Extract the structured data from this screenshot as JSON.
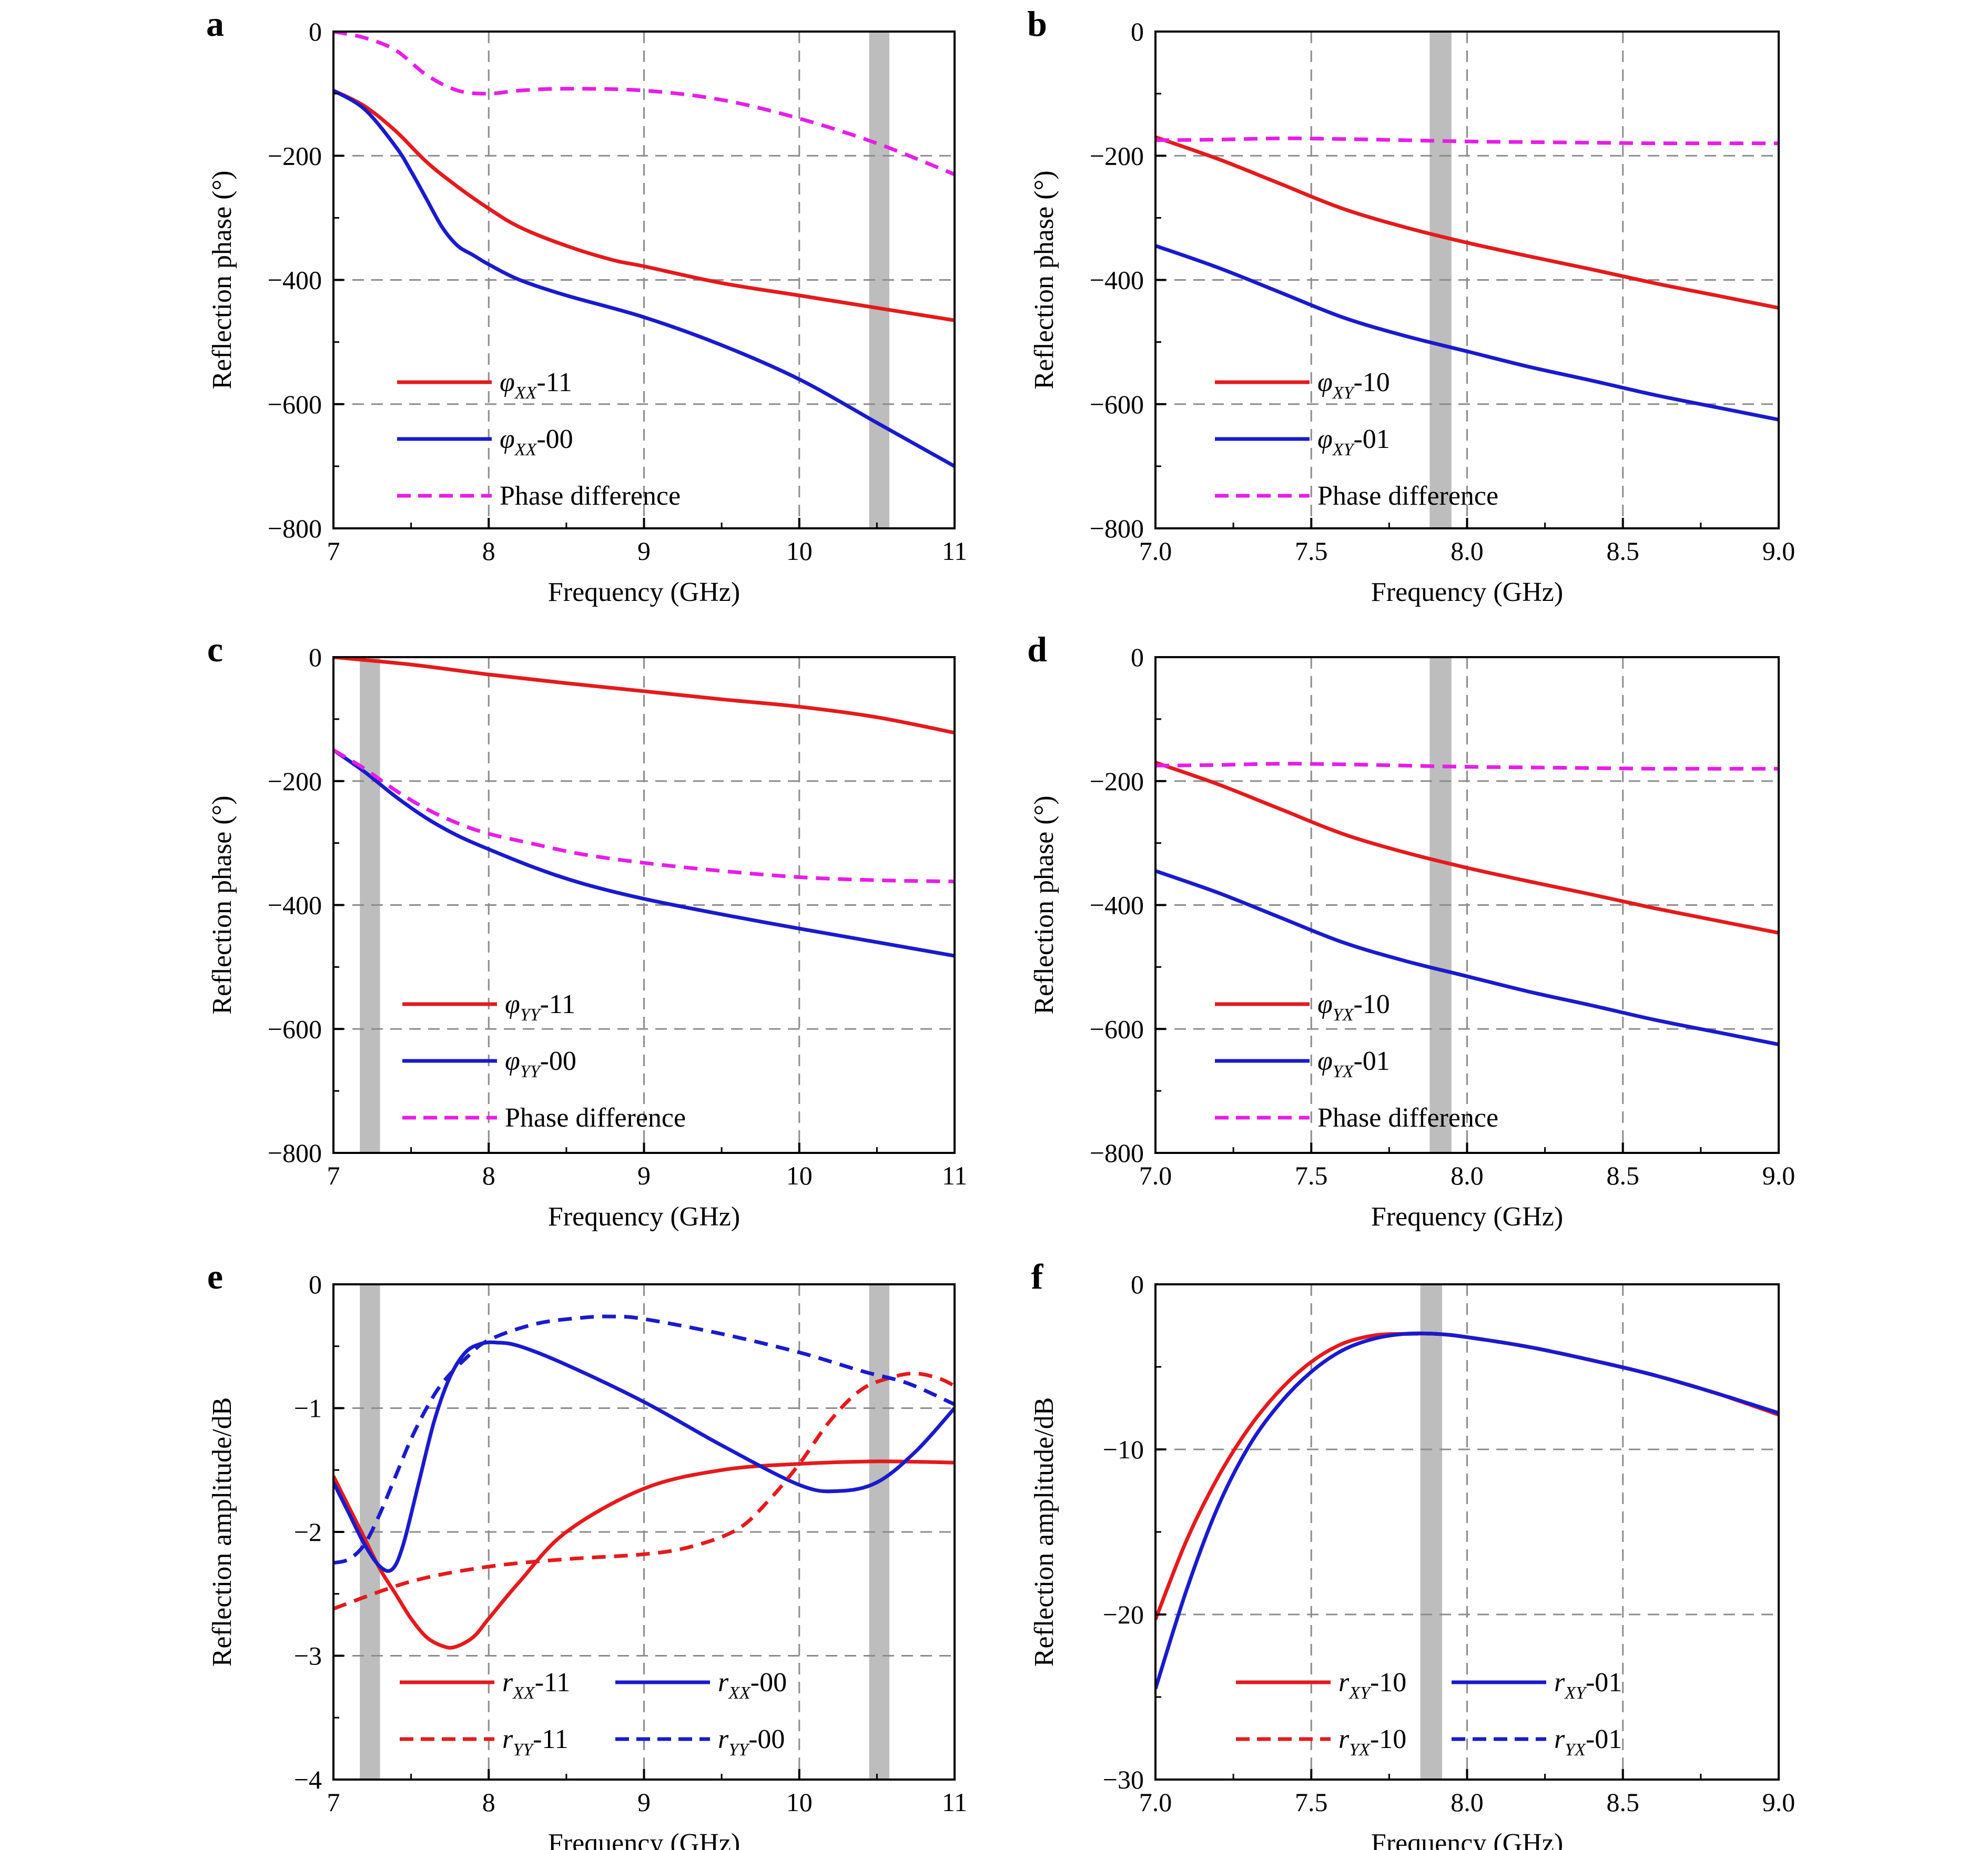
{
  "chart_data": [
    {
      "panel": "a",
      "type": "line",
      "xlabel": "Frequency (GHz)",
      "ylabel": "Reflection phase (°)",
      "xlim": [
        7,
        11
      ],
      "ylim": [
        -800,
        0
      ],
      "xticks": [
        7,
        8,
        9,
        10,
        11
      ],
      "xtick_labels": [
        "7",
        "8",
        "9",
        "10",
        "11"
      ],
      "yticks": [
        0,
        -200,
        -400,
        -600,
        -800
      ],
      "ytick_labels": [
        "0",
        "−200",
        "−400",
        "−600",
        "−800"
      ],
      "grid": true,
      "legend_position": "bottom-left",
      "highlight_bands": [
        [
          10.45,
          10.58
        ]
      ],
      "series": [
        {
          "name": "φXX-11",
          "sym": "φ",
          "sub": "XX",
          "suffix": "-11",
          "color": "#e41a1c",
          "dash": "solid",
          "x": [
            7,
            7.2,
            7.4,
            7.6,
            7.8,
            8,
            8.2,
            8.5,
            8.8,
            9,
            9.5,
            10,
            10.5,
            11
          ],
          "y": [
            -95,
            -120,
            -160,
            -210,
            -250,
            -285,
            -315,
            -345,
            -368,
            -378,
            -405,
            -425,
            -445,
            -465
          ]
        },
        {
          "name": "φXX-00",
          "sym": "φ",
          "sub": "XX",
          "suffix": "-00",
          "color": "#1a1acd",
          "dash": "solid",
          "x": [
            7,
            7.2,
            7.4,
            7.5,
            7.6,
            7.7,
            7.8,
            7.9,
            8,
            8.2,
            8.5,
            9,
            9.5,
            10,
            10.5,
            11
          ],
          "y": [
            -95,
            -125,
            -185,
            -225,
            -270,
            -315,
            -345,
            -360,
            -375,
            -400,
            -425,
            -460,
            -505,
            -560,
            -630,
            -700
          ]
        },
        {
          "name": "Phase difference",
          "label": "Phase difference",
          "color": "#e61ee6",
          "dash": "dashed",
          "x": [
            7,
            7.2,
            7.4,
            7.6,
            7.8,
            8,
            8.2,
            8.5,
            9,
            9.5,
            10,
            10.5,
            11
          ],
          "y": [
            0,
            -10,
            -30,
            -70,
            -95,
            -100,
            -95,
            -92,
            -95,
            -110,
            -140,
            -180,
            -230
          ]
        }
      ]
    },
    {
      "panel": "b",
      "type": "line",
      "xlabel": "Frequency (GHz)",
      "ylabel": "Reflection phase (°)",
      "xlim": [
        7.0,
        9.0
      ],
      "ylim": [
        -800,
        0
      ],
      "xticks": [
        7.0,
        7.5,
        8.0,
        8.5,
        9.0
      ],
      "xtick_labels": [
        "7.0",
        "7.5",
        "8.0",
        "8.5",
        "9.0"
      ],
      "yticks": [
        0,
        -200,
        -400,
        -600,
        -800
      ],
      "ytick_labels": [
        "0",
        "−200",
        "−400",
        "−600",
        "−800"
      ],
      "grid": true,
      "legend_position": "bottom-left",
      "highlight_bands": [
        [
          7.88,
          7.95
        ]
      ],
      "series": [
        {
          "name": "φXY-10",
          "sym": "φ",
          "sub": "XY",
          "suffix": "-10",
          "color": "#e41a1c",
          "dash": "solid",
          "x": [
            7,
            7.2,
            7.4,
            7.6,
            7.8,
            8,
            8.2,
            8.4,
            8.6,
            8.8,
            9
          ],
          "y": [
            -170,
            -205,
            -245,
            -285,
            -315,
            -340,
            -362,
            -383,
            -405,
            -425,
            -445
          ]
        },
        {
          "name": "φXY-01",
          "sym": "φ",
          "sub": "XY",
          "suffix": "-01",
          "color": "#1a1acd",
          "dash": "solid",
          "x": [
            7,
            7.2,
            7.4,
            7.6,
            7.8,
            8,
            8.2,
            8.4,
            8.6,
            8.8,
            9
          ],
          "y": [
            -345,
            -380,
            -420,
            -460,
            -490,
            -515,
            -540,
            -562,
            -585,
            -605,
            -625
          ]
        },
        {
          "name": "Phase difference",
          "label": "Phase difference",
          "color": "#e61ee6",
          "dash": "dashed",
          "x": [
            7,
            7.2,
            7.4,
            7.6,
            7.8,
            8,
            8.2,
            8.4,
            8.6,
            8.8,
            9
          ],
          "y": [
            -175,
            -174,
            -172,
            -173,
            -175,
            -177,
            -178,
            -179,
            -180,
            -180,
            -180
          ]
        }
      ]
    },
    {
      "panel": "c",
      "type": "line",
      "xlabel": "Frequency (GHz)",
      "ylabel": "Reflection phase (°)",
      "xlim": [
        7,
        11
      ],
      "ylim": [
        -800,
        0
      ],
      "xticks": [
        7,
        8,
        9,
        10,
        11
      ],
      "xtick_labels": [
        "7",
        "8",
        "9",
        "10",
        "11"
      ],
      "yticks": [
        0,
        -200,
        -400,
        -600,
        -800
      ],
      "ytick_labels": [
        "0",
        "−200",
        "−400",
        "−600",
        "−800"
      ],
      "grid": true,
      "legend_position": "bottom-left",
      "highlight_bands": [
        [
          7.17,
          7.3
        ]
      ],
      "series": [
        {
          "name": "φYY-11",
          "sym": "φ",
          "sub": "YY",
          "suffix": "-11",
          "color": "#e41a1c",
          "dash": "solid",
          "x": [
            7,
            7.5,
            8,
            8.5,
            9,
            9.5,
            10,
            10.5,
            11
          ],
          "y": [
            0,
            -12,
            -28,
            -42,
            -55,
            -68,
            -80,
            -97,
            -122
          ]
        },
        {
          "name": "φYY-00",
          "sym": "φ",
          "sub": "YY",
          "suffix": "-00",
          "color": "#1a1acd",
          "dash": "solid",
          "x": [
            7,
            7.2,
            7.4,
            7.6,
            7.8,
            8,
            8.3,
            8.6,
            9,
            9.5,
            10,
            10.5,
            11
          ],
          "y": [
            -150,
            -185,
            -225,
            -260,
            -288,
            -310,
            -340,
            -365,
            -390,
            -415,
            -438,
            -460,
            -482
          ]
        },
        {
          "name": "Phase difference",
          "label": "Phase difference",
          "color": "#e61ee6",
          "dash": "dashed",
          "x": [
            7,
            7.2,
            7.4,
            7.6,
            7.8,
            8,
            8.3,
            8.6,
            9,
            9.5,
            10,
            10.5,
            11
          ],
          "y": [
            -150,
            -180,
            -215,
            -245,
            -268,
            -285,
            -302,
            -318,
            -332,
            -345,
            -355,
            -360,
            -362
          ]
        }
      ]
    },
    {
      "panel": "d",
      "type": "line",
      "xlabel": "Frequency (GHz)",
      "ylabel": "Reflection phase (°)",
      "xlim": [
        7.0,
        9.0
      ],
      "ylim": [
        -800,
        0
      ],
      "xticks": [
        7.0,
        7.5,
        8.0,
        8.5,
        9.0
      ],
      "xtick_labels": [
        "7.0",
        "7.5",
        "8.0",
        "8.5",
        "9.0"
      ],
      "yticks": [
        0,
        -200,
        -400,
        -600,
        -800
      ],
      "ytick_labels": [
        "0",
        "−200",
        "−400",
        "−600",
        "−800"
      ],
      "grid": true,
      "legend_position": "bottom-left",
      "highlight_bands": [
        [
          7.88,
          7.95
        ]
      ],
      "series": [
        {
          "name": "φYX-10",
          "sym": "φ",
          "sub": "YX",
          "suffix": "-10",
          "color": "#e41a1c",
          "dash": "solid",
          "x": [
            7,
            7.2,
            7.4,
            7.6,
            7.8,
            8,
            8.2,
            8.4,
            8.6,
            8.8,
            9
          ],
          "y": [
            -170,
            -205,
            -245,
            -285,
            -315,
            -340,
            -362,
            -383,
            -405,
            -425,
            -445
          ]
        },
        {
          "name": "φYX-01",
          "sym": "φ",
          "sub": "YX",
          "suffix": "-01",
          "color": "#1a1acd",
          "dash": "solid",
          "x": [
            7,
            7.2,
            7.4,
            7.6,
            7.8,
            8,
            8.2,
            8.4,
            8.6,
            8.8,
            9
          ],
          "y": [
            -345,
            -380,
            -420,
            -460,
            -490,
            -515,
            -540,
            -562,
            -585,
            -605,
            -625
          ]
        },
        {
          "name": "Phase difference",
          "label": "Phase difference",
          "color": "#e61ee6",
          "dash": "dashed",
          "x": [
            7,
            7.2,
            7.4,
            7.6,
            7.8,
            8,
            8.2,
            8.4,
            8.6,
            8.8,
            9
          ],
          "y": [
            -175,
            -174,
            -172,
            -173,
            -175,
            -177,
            -178,
            -179,
            -180,
            -180,
            -180
          ]
        }
      ]
    },
    {
      "panel": "e",
      "type": "line",
      "xlabel": "Frequency (GHz)",
      "ylabel": "Reflection amplitude/dB",
      "xlim": [
        7,
        11
      ],
      "ylim": [
        -4,
        0
      ],
      "xticks": [
        7,
        8,
        9,
        10,
        11
      ],
      "xtick_labels": [
        "7",
        "8",
        "9",
        "10",
        "11"
      ],
      "yticks": [
        0,
        -1,
        -2,
        -3,
        -4
      ],
      "ytick_labels": [
        "0",
        "−1",
        "−2",
        "−3",
        "−4"
      ],
      "grid": true,
      "legend_position": "bottom",
      "legend_columns": 2,
      "highlight_bands": [
        [
          7.17,
          7.3
        ],
        [
          10.45,
          10.58
        ]
      ],
      "series": [
        {
          "name": "rXX-11",
          "sym": "r",
          "sub": "XX",
          "suffix": "-11",
          "color": "#e41a1c",
          "dash": "solid",
          "x": [
            7,
            7.1,
            7.2,
            7.3,
            7.4,
            7.5,
            7.6,
            7.7,
            7.78,
            7.9,
            8,
            8.2,
            8.5,
            9,
            9.5,
            10,
            10.5,
            11
          ],
          "y": [
            -1.55,
            -1.8,
            -2.05,
            -2.3,
            -2.5,
            -2.7,
            -2.85,
            -2.92,
            -2.93,
            -2.85,
            -2.7,
            -2.4,
            -2.0,
            -1.65,
            -1.5,
            -1.45,
            -1.43,
            -1.44
          ]
        },
        {
          "name": "rXX-00",
          "sym": "r",
          "sub": "XX",
          "suffix": "-00",
          "color": "#1a1acd",
          "dash": "solid",
          "x": [
            7,
            7.1,
            7.2,
            7.3,
            7.38,
            7.45,
            7.55,
            7.65,
            7.75,
            7.85,
            7.95,
            8.05,
            8.2,
            8.5,
            9,
            9.5,
            10,
            10.25,
            10.5,
            10.75,
            11
          ],
          "y": [
            -1.6,
            -1.85,
            -2.1,
            -2.28,
            -2.3,
            -2.1,
            -1.6,
            -1.1,
            -0.75,
            -0.55,
            -0.48,
            -0.47,
            -0.5,
            -0.65,
            -0.95,
            -1.3,
            -1.62,
            -1.67,
            -1.6,
            -1.35,
            -1.0
          ]
        },
        {
          "name": "rYY-11",
          "sym": "r",
          "sub": "YY",
          "suffix": "-11",
          "color": "#e41a1c",
          "dash": "dashed",
          "x": [
            7,
            7.5,
            8,
            8.5,
            9,
            9.3,
            9.6,
            9.8,
            10,
            10.2,
            10.4,
            10.6,
            10.75,
            10.9,
            11
          ],
          "y": [
            -2.62,
            -2.4,
            -2.28,
            -2.22,
            -2.18,
            -2.12,
            -1.98,
            -1.75,
            -1.45,
            -1.1,
            -0.85,
            -0.75,
            -0.72,
            -0.76,
            -0.82
          ]
        },
        {
          "name": "rYY-00",
          "sym": "r",
          "sub": "YY",
          "suffix": "-00",
          "color": "#1a1acd",
          "dash": "dashed",
          "x": [
            7,
            7.1,
            7.2,
            7.3,
            7.4,
            7.5,
            7.6,
            7.7,
            7.85,
            8,
            8.3,
            8.6,
            8.8,
            9,
            9.5,
            10,
            10.4,
            10.7,
            11
          ],
          "y": [
            -2.25,
            -2.22,
            -2.1,
            -1.85,
            -1.55,
            -1.25,
            -1.0,
            -0.8,
            -0.6,
            -0.45,
            -0.32,
            -0.27,
            -0.26,
            -0.28,
            -0.4,
            -0.55,
            -0.7,
            -0.8,
            -0.97
          ]
        }
      ]
    },
    {
      "panel": "f",
      "type": "line",
      "xlabel": "Frequency (GHz)",
      "ylabel": "Reflection amplitude/dB",
      "xlim": [
        7.0,
        9.0
      ],
      "ylim": [
        -30,
        0
      ],
      "xticks": [
        7.0,
        7.5,
        8.0,
        8.5,
        9.0
      ],
      "xtick_labels": [
        "7.0",
        "7.5",
        "8.0",
        "8.5",
        "9.0"
      ],
      "yticks": [
        0,
        -10,
        -20,
        -30
      ],
      "ytick_labels": [
        "0",
        "−10",
        "−20",
        "−30"
      ],
      "grid": true,
      "legend_position": "bottom",
      "legend_columns": 2,
      "highlight_bands": [
        [
          7.85,
          7.92
        ]
      ],
      "series": [
        {
          "name": "rXY-10",
          "sym": "r",
          "sub": "XY",
          "suffix": "-10",
          "color": "#e41a1c",
          "dash": "solid",
          "x": [
            7,
            7.1,
            7.2,
            7.3,
            7.4,
            7.5,
            7.6,
            7.7,
            7.8,
            7.9,
            8,
            8.2,
            8.4,
            8.6,
            8.8,
            9
          ],
          "y": [
            -20.3,
            -15.5,
            -11.7,
            -8.7,
            -6.4,
            -4.7,
            -3.6,
            -3.1,
            -3.0,
            -3.0,
            -3.2,
            -3.8,
            -4.6,
            -5.5,
            -6.6,
            -7.9
          ]
        },
        {
          "name": "rXY-01",
          "sym": "r",
          "sub": "XY",
          "suffix": "-01",
          "color": "#1a1acd",
          "dash": "solid",
          "x": [
            7,
            7.1,
            7.2,
            7.3,
            7.4,
            7.5,
            7.6,
            7.7,
            7.8,
            7.9,
            8,
            8.2,
            8.4,
            8.6,
            8.8,
            9
          ],
          "y": [
            -24.5,
            -18.5,
            -13.5,
            -9.8,
            -7.2,
            -5.3,
            -4.0,
            -3.3,
            -3.0,
            -3.0,
            -3.2,
            -3.8,
            -4.6,
            -5.5,
            -6.6,
            -7.8
          ]
        },
        {
          "name": "rYX-10",
          "sym": "r",
          "sub": "YX",
          "suffix": "-10",
          "color": "#e41a1c",
          "dash": "dashed",
          "x": [
            7.8,
            7.9,
            8,
            8.2,
            8.4,
            8.6,
            8.8,
            9
          ],
          "y": [
            -3.0,
            -3.0,
            -3.2,
            -3.8,
            -4.6,
            -5.5,
            -6.6,
            -7.9
          ]
        },
        {
          "name": "rYX-01",
          "sym": "r",
          "sub": "YX",
          "suffix": "-01",
          "color": "#1a1acd",
          "dash": "dashed",
          "x": [
            7.8,
            7.9,
            8,
            8.2,
            8.4,
            8.6,
            8.8,
            9
          ],
          "y": [
            -3.0,
            -3.0,
            -3.2,
            -3.8,
            -4.6,
            -5.5,
            -6.6,
            -7.8
          ]
        }
      ]
    }
  ]
}
